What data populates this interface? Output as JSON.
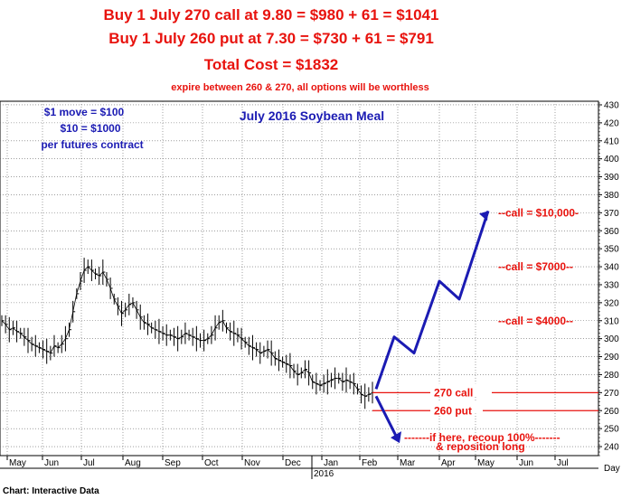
{
  "header": {
    "line1": "Buy 1 July 270 call at 9.80 = $980 + 61 = $1041",
    "line2": "Buy 1 July 260 put at 7.30 = $730 + 61 = $791",
    "line3": "Total Cost = $1832",
    "line4": "expire between 260 & 270, all options will be worthless"
  },
  "notes": {
    "move1": "$1 move = $100",
    "move2": "$10 = $1000",
    "move3": "per futures contract"
  },
  "footer": "Chart: Interactive Data",
  "colors": {
    "red": "#e8130e",
    "blue": "#1b1bb3",
    "grid": "#555555"
  },
  "chart_data": {
    "type": "line",
    "title": "July 2016 Soybean Meal",
    "ylim": [
      235,
      432
    ],
    "y_ticks": [
      240,
      250,
      260,
      270,
      280,
      290,
      300,
      310,
      320,
      330,
      340,
      350,
      360,
      370,
      380,
      390,
      400,
      410,
      420,
      430
    ],
    "x_ticks": [
      "May",
      "Jun",
      "Jul",
      "Aug",
      "Sep",
      "Oct",
      "Nov",
      "Dec",
      "Jan",
      "Feb",
      "Mar",
      "Apr",
      "May",
      "Jun",
      "Jul"
    ],
    "x_sublabel": "2016",
    "x_axis_unit": "Day",
    "grid": true,
    "series": [
      {
        "values": [
          310,
          308,
          305,
          306,
          304,
          303,
          301,
          299,
          297,
          296,
          295,
          294,
          293,
          292,
          296,
          295,
          297,
          300,
          305,
          315,
          325,
          332,
          338,
          340,
          338,
          336,
          335,
          337,
          333,
          328,
          322,
          318,
          314,
          316,
          319,
          320,
          316,
          312,
          309,
          308,
          306,
          305,
          304,
          303,
          302,
          302,
          301,
          300,
          301,
          303,
          302,
          301,
          300,
          299,
          299,
          300,
          302,
          306,
          309,
          310,
          306,
          304,
          303,
          302,
          300,
          298,
          296,
          295,
          294,
          292,
          293,
          294,
          292,
          289,
          288,
          287,
          286,
          285,
          282,
          280,
          281,
          283,
          281,
          276,
          275,
          274,
          275,
          276,
          277,
          278,
          278,
          276,
          277,
          276,
          275,
          272,
          269,
          268,
          269,
          270
        ]
      }
    ],
    "annotations": {
      "call_270": "270 call",
      "put_260": "260 put",
      "call_10000": "--call = $10,000-",
      "call_7000": "--call = $7000--",
      "call_4000": "--call = $4000--",
      "recoup1": "-------if here, recoup 100%-------",
      "recoup2": "& reposition long"
    },
    "projection_path": [
      [
        0,
        272
      ],
      [
        1,
        301
      ],
      [
        2,
        292
      ],
      [
        3,
        332
      ],
      [
        4,
        322
      ],
      [
        5,
        371
      ]
    ],
    "projection_down": [
      [
        0,
        268
      ],
      [
        1,
        244
      ]
    ]
  }
}
